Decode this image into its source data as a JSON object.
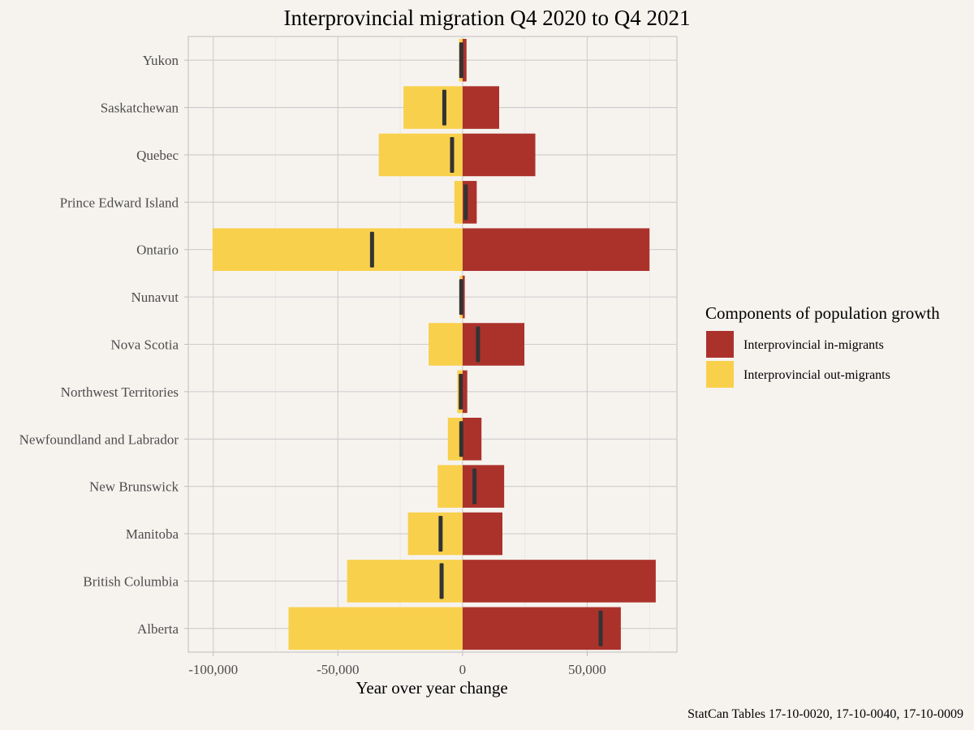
{
  "chart_data": {
    "type": "bar",
    "orientation": "horizontal",
    "title": "Interprovincial migration Q4 2020 to Q4 2021",
    "xlabel": "Year over year change",
    "ylabel": "",
    "caption": "StatCan Tables 17-10-0020, 17-10-0040, 17-10-0009",
    "xlim": [
      -110000,
      86000
    ],
    "x_ticks": [
      -100000,
      -50000,
      0,
      50000
    ],
    "x_tick_labels": [
      "-100,000",
      "-50,000",
      "0",
      "50,000"
    ],
    "grid": true,
    "legend_position": "right",
    "legend_title": "Components of population growth",
    "categories": [
      "Yukon",
      "Saskatchewan",
      "Quebec",
      "Prince Edward Island",
      "Ontario",
      "Nunavut",
      "Nova Scotia",
      "Northwest Territories",
      "Newfoundland and Labrador",
      "New Brunswick",
      "Manitoba",
      "British Columbia",
      "Alberta"
    ],
    "series": [
      {
        "name": "Interprovincial in-migrants",
        "color": "#ab322b",
        "values": [
          1600,
          14700,
          29200,
          5700,
          75000,
          900,
          24800,
          1900,
          7600,
          16700,
          16000,
          77500,
          63500
        ]
      },
      {
        "name": "Interprovincial out-migrants",
        "color": "#f9d04c",
        "values": [
          -1400,
          -23700,
          -33600,
          -3300,
          -100300,
          -1100,
          -13600,
          -2100,
          -5900,
          -10000,
          -21900,
          -46300,
          -69800
        ]
      }
    ],
    "net_change": {
      "color": "#333333",
      "values": [
        -500,
        -7300,
        -4200,
        1300,
        -36300,
        -500,
        6200,
        -700,
        -500,
        4800,
        -8800,
        -8400,
        55400
      ]
    }
  }
}
